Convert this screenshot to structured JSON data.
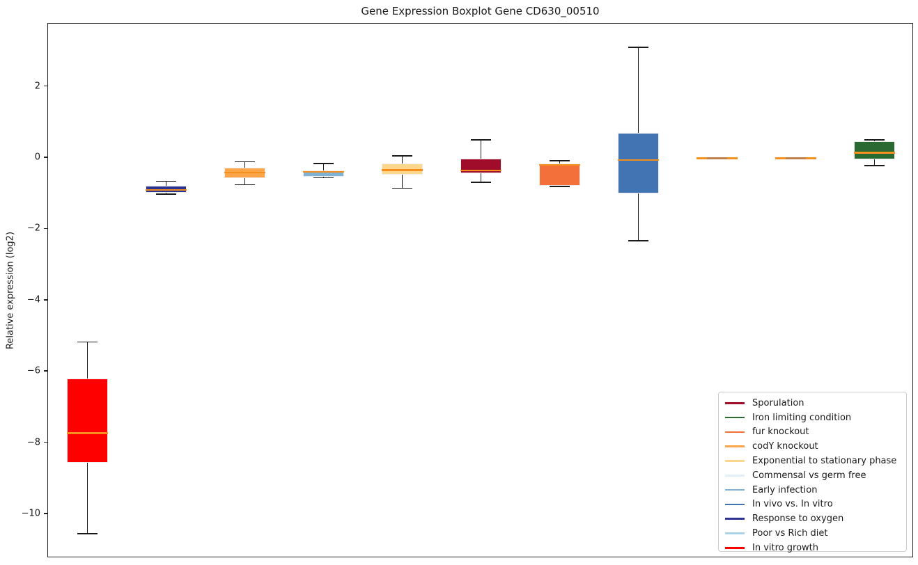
{
  "figure": {
    "title": "Gene Expression Boxplot Gene CD630_00510",
    "ylabel": "Relative expression (log2)"
  },
  "chart_data": {
    "type": "boxplot",
    "title": "Gene Expression Boxplot Gene CD630_00510",
    "xlabel": "",
    "ylabel": "Relative expression (log2)",
    "ylim": [
      -11.23,
      3.77
    ],
    "yticks": [
      2,
      0,
      -2,
      -4,
      -6,
      -8,
      -10
    ],
    "ytick_labels": [
      "2",
      "0",
      "−2",
      "−4",
      "−6",
      "−8",
      "−10"
    ],
    "grid": false,
    "legend_position": "lower right",
    "median_color": "#f5901e",
    "flat_cap_color": "#c0804a",
    "series": [
      {
        "name": "In vitro growth",
        "color": "#ff0000",
        "whisker_low": -10.55,
        "q1": -8.55,
        "median": -7.72,
        "q3": -6.2,
        "whisker_high": -5.17
      },
      {
        "name": "Response to oxygen",
        "color": "#2c3390",
        "whisker_low": -1.02,
        "q1": -0.97,
        "median": -0.9,
        "q3": -0.79,
        "whisker_high": -0.65
      },
      {
        "name": "codY knockout",
        "color": "#fba548",
        "whisker_low": -0.75,
        "q1": -0.57,
        "median": -0.41,
        "q3": -0.27,
        "whisker_high": -0.11
      },
      {
        "name": "Early infection",
        "color": "#7fb2d5",
        "whisker_low": -0.56,
        "q1": -0.53,
        "median": -0.39,
        "q3": -0.35,
        "whisker_high": -0.16
      },
      {
        "name": "Exponential to stationary phase",
        "color": "#fcd78c",
        "whisker_low": -0.85,
        "q1": -0.47,
        "median": -0.34,
        "q3": -0.16,
        "whisker_high": 0.06
      },
      {
        "name": "Sporulation",
        "color": "#a00d2b",
        "whisker_low": -0.68,
        "q1": -0.42,
        "median": -0.35,
        "q3": -0.02,
        "whisker_high": 0.51
      },
      {
        "name": "fur knockout",
        "color": "#f3703a",
        "whisker_low": -0.8,
        "q1": -0.78,
        "median": -0.19,
        "q3": -0.16,
        "whisker_high": -0.08
      },
      {
        "name": "In vivo vs. In vitro",
        "color": "#4273b3",
        "whisker_low": -2.32,
        "q1": -1.0,
        "median": -0.06,
        "q3": 0.7,
        "whisker_high": 3.11
      },
      {
        "name": "Commensal vs germ free",
        "color": "#e0eff8",
        "whisker_low": -0.02,
        "q1": -0.01,
        "median": 0.0,
        "q3": 0.01,
        "whisker_high": 0.02
      },
      {
        "name": "Poor vs Rich diet",
        "color": "#a8d3e8",
        "whisker_low": -0.02,
        "q1": -0.01,
        "median": 0.0,
        "q3": 0.01,
        "whisker_high": 0.02
      },
      {
        "name": "Iron limiting condition",
        "color": "#2a6a32",
        "whisker_low": -0.21,
        "q1": -0.03,
        "median": 0.15,
        "q3": 0.47,
        "whisker_high": 0.51
      }
    ],
    "legend": [
      {
        "label": "Sporulation",
        "color": "#a00d2b"
      },
      {
        "label": "Iron limiting condition",
        "color": "#2a6a32"
      },
      {
        "label": "fur knockout",
        "color": "#f3703a"
      },
      {
        "label": "codY knockout",
        "color": "#fba548"
      },
      {
        "label": "Exponential to stationary phase",
        "color": "#fcd78c"
      },
      {
        "label": "Commensal vs germ free",
        "color": "#e0eff8"
      },
      {
        "label": "Early infection",
        "color": "#7fb2d5"
      },
      {
        "label": "In vivo vs. In vitro",
        "color": "#4273b3"
      },
      {
        "label": "Response to oxygen",
        "color": "#2c3390"
      },
      {
        "label": "Poor vs Rich diet",
        "color": "#a8d3e8"
      },
      {
        "label": "In vitro growth",
        "color": "#ff0000"
      }
    ]
  }
}
